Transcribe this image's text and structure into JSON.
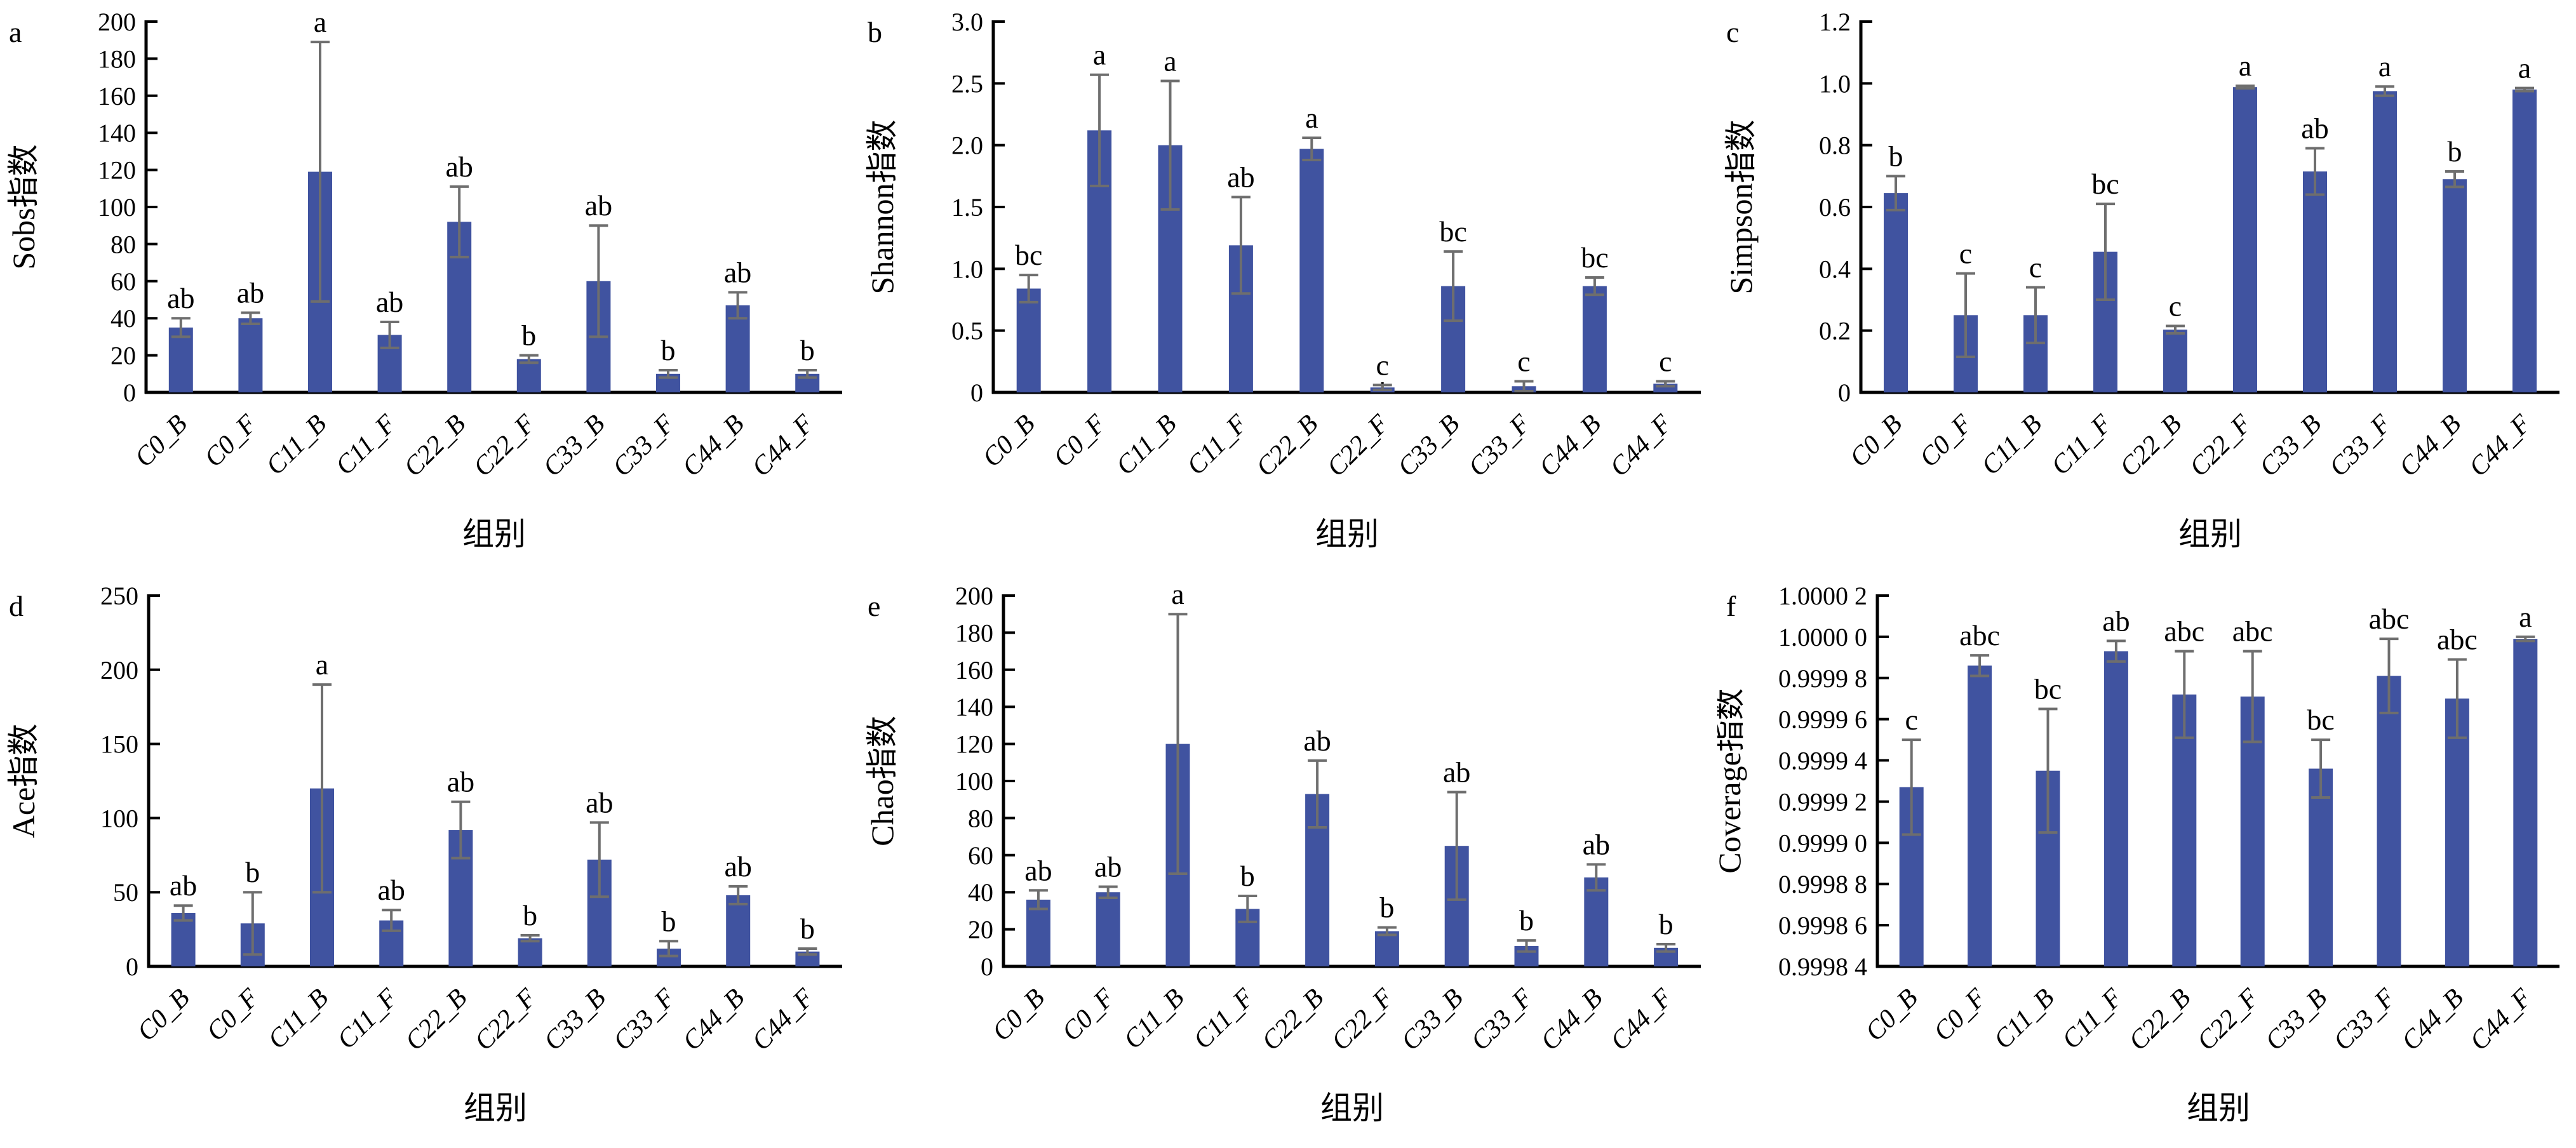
{
  "chart_data": {
    "type": "bar",
    "xlabel": "组别",
    "categories": [
      "C0_B",
      "C0_F",
      "C11_B",
      "C11_F",
      "C22_B",
      "C22_F",
      "C33_B",
      "C33_F",
      "C44_B",
      "C44_F"
    ],
    "colors": {
      "bar": "#4053A0",
      "error": "#6e6e6e",
      "axis": "#000000",
      "text": "#000000"
    },
    "legend": "none",
    "grid": "off",
    "panels": [
      {
        "id": "a",
        "ylabel": "Sobs指数",
        "ylim": [
          0,
          200
        ],
        "tick_values": [
          0,
          20,
          40,
          60,
          80,
          100,
          120,
          140,
          160,
          180,
          200
        ],
        "tick_labels": [
          "0",
          "20",
          "40",
          "60",
          "80",
          "100",
          "120",
          "140",
          "160",
          "180",
          "200"
        ],
        "values": [
          35,
          40,
          119,
          31,
          92,
          18,
          60,
          10,
          47,
          10
        ],
        "errors": [
          5,
          3,
          70,
          7,
          19,
          2,
          30,
          2,
          7,
          2
        ],
        "letters": [
          "ab",
          "ab",
          "a",
          "ab",
          "ab",
          "b",
          "ab",
          "b",
          "ab",
          "b"
        ],
        "layout": {
          "left_margin": 230,
          "ylabel_x": 54
        }
      },
      {
        "id": "b",
        "ylabel": "Shannon指数",
        "ylim": [
          0,
          3.0
        ],
        "tick_values": [
          0,
          0.5,
          1.0,
          1.5,
          2.0,
          2.5,
          3.0
        ],
        "tick_labels": [
          "0",
          "0.5",
          "1.0",
          "1.5",
          "2.0",
          "2.5",
          "3.0"
        ],
        "values": [
          0.84,
          2.12,
          2.0,
          1.19,
          1.97,
          0.04,
          0.86,
          0.05,
          0.86,
          0.07
        ],
        "errors": [
          0.11,
          0.45,
          0.52,
          0.39,
          0.09,
          0.02,
          0.28,
          0.04,
          0.07,
          0.02
        ],
        "letters": [
          "bc",
          "a",
          "a",
          "ab",
          "a",
          "c",
          "bc",
          "c",
          "bc",
          "c"
        ],
        "layout": {
          "left_margin": 212,
          "ylabel_x": 54
        }
      },
      {
        "id": "c",
        "ylabel": "Simpson指数",
        "ylim": [
          0,
          1.2
        ],
        "tick_values": [
          0,
          0.2,
          0.4,
          0.6,
          0.8,
          1.0,
          1.2
        ],
        "tick_labels": [
          "0",
          "0.2",
          "0.4",
          "0.6",
          "0.8",
          "1.0",
          "1.2"
        ],
        "values": [
          0.645,
          0.25,
          0.25,
          0.455,
          0.203,
          0.988,
          0.715,
          0.975,
          0.69,
          0.98
        ],
        "errors": [
          0.055,
          0.135,
          0.09,
          0.155,
          0.012,
          0.004,
          0.075,
          0.015,
          0.025,
          0.005
        ],
        "letters": [
          "b",
          "c",
          "c",
          "bc",
          "c",
          "a",
          "ab",
          "a",
          "b",
          "a"
        ],
        "layout": {
          "left_margin": 226,
          "ylabel_x": 54
        }
      },
      {
        "id": "d",
        "ylabel": "Ace指数",
        "ylim": [
          0,
          250
        ],
        "tick_values": [
          0,
          50,
          100,
          150,
          200,
          250
        ],
        "tick_labels": [
          "0",
          "50",
          "100",
          "150",
          "200",
          "250"
        ],
        "values": [
          36,
          29,
          120,
          31,
          92,
          19,
          72,
          12,
          48,
          10
        ],
        "errors": [
          5,
          21,
          70,
          7,
          19,
          2,
          25,
          5,
          6,
          2
        ],
        "letters": [
          "ab",
          "b",
          "a",
          "ab",
          "ab",
          "b",
          "ab",
          "b",
          "ab",
          "b"
        ],
        "layout": {
          "left_margin": 234,
          "ylabel_x": 54
        }
      },
      {
        "id": "e",
        "ylabel": "Chao指数",
        "ylim": [
          0,
          200
        ],
        "tick_values": [
          0,
          20,
          40,
          60,
          80,
          100,
          120,
          140,
          160,
          180,
          200
        ],
        "tick_labels": [
          "0",
          "20",
          "40",
          "60",
          "80",
          "100",
          "120",
          "140",
          "160",
          "180",
          "200"
        ],
        "values": [
          36,
          40,
          120,
          31,
          93,
          19,
          65,
          11,
          48,
          10
        ],
        "errors": [
          5,
          3,
          70,
          7,
          18,
          2,
          29,
          3,
          7,
          2
        ],
        "letters": [
          "ab",
          "ab",
          "a",
          "b",
          "ab",
          "b",
          "ab",
          "b",
          "ab",
          "b"
        ],
        "layout": {
          "left_margin": 228,
          "ylabel_x": 54
        }
      },
      {
        "id": "f",
        "ylabel": "Coverage指数",
        "ylim": [
          0.99984,
          1.00002
        ],
        "tick_values": [
          0.99984,
          0.99986,
          0.99988,
          0.9999,
          0.99992,
          0.99994,
          0.99996,
          0.99998,
          1.0,
          1.00002
        ],
        "tick_labels": [
          "0.9998 4",
          "0.9998 6",
          "0.9998 8",
          "0.9999 0",
          "0.9999 2",
          "0.9999 4",
          "0.9999 6",
          "0.9999 8",
          "1.0000 0",
          "1.0000 2"
        ],
        "values": [
          0.999927,
          0.999986,
          0.999935,
          0.999993,
          0.999972,
          0.999971,
          0.999936,
          0.999981,
          0.99997,
          0.999999
        ],
        "errors": [
          2.3e-05,
          5e-06,
          3e-05,
          5e-06,
          2.1e-05,
          2.2e-05,
          1.4e-05,
          1.8e-05,
          1.9e-05,
          1e-06
        ],
        "letters": [
          "c",
          "abc",
          "bc",
          "ab",
          "abc",
          "abc",
          "bc",
          "abc",
          "abc",
          "a"
        ],
        "layout": {
          "left_margin": 252,
          "ylabel_x": 36
        }
      }
    ]
  }
}
